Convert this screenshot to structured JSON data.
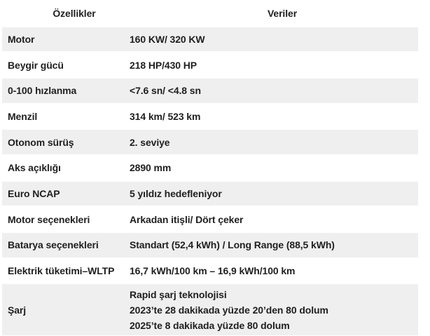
{
  "table": {
    "headers": {
      "features": "Özellikler",
      "data": "Veriler"
    },
    "rows": [
      {
        "feature": "Motor",
        "value": "160 KW/ 320 KW"
      },
      {
        "feature": "Beygir gücü",
        "value": "218 HP/430 HP"
      },
      {
        "feature": "0-100 hızlanma",
        "value": "<7.6 sn/ <4.8 sn"
      },
      {
        "feature": "Menzil",
        "value": "314 km/ 523 km"
      },
      {
        "feature": "Otonom sürüş",
        "value": "2. seviye"
      },
      {
        "feature": "Aks açıklığı",
        "value": "2890 mm"
      },
      {
        "feature": "Euro NCAP",
        "value": "5 yıldız hedefleniyor"
      },
      {
        "feature": "Motor seçenekleri",
        "value": "Arkadan itişli/ Dört çeker"
      },
      {
        "feature": "Batarya seçenekleri",
        "value": "Standart (52,4 kWh) / Long Range (88,5 kWh)"
      },
      {
        "feature": "Elektrik tüketimi–WLTP",
        "value": "16,7 kWh/100 km – 16,9 kWh/100 km"
      },
      {
        "feature": "Şarj",
        "value_lines": [
          "Rapid şarj teknolojisi",
          "2023’te 28 dakikada yüzde 20’den 80 dolum",
          "2025’te 8 dakikada yüzde 80 dolum"
        ]
      }
    ]
  },
  "colors": {
    "row_shade": "#efefef",
    "text": "#1f1f1f",
    "background": "#ffffff"
  }
}
